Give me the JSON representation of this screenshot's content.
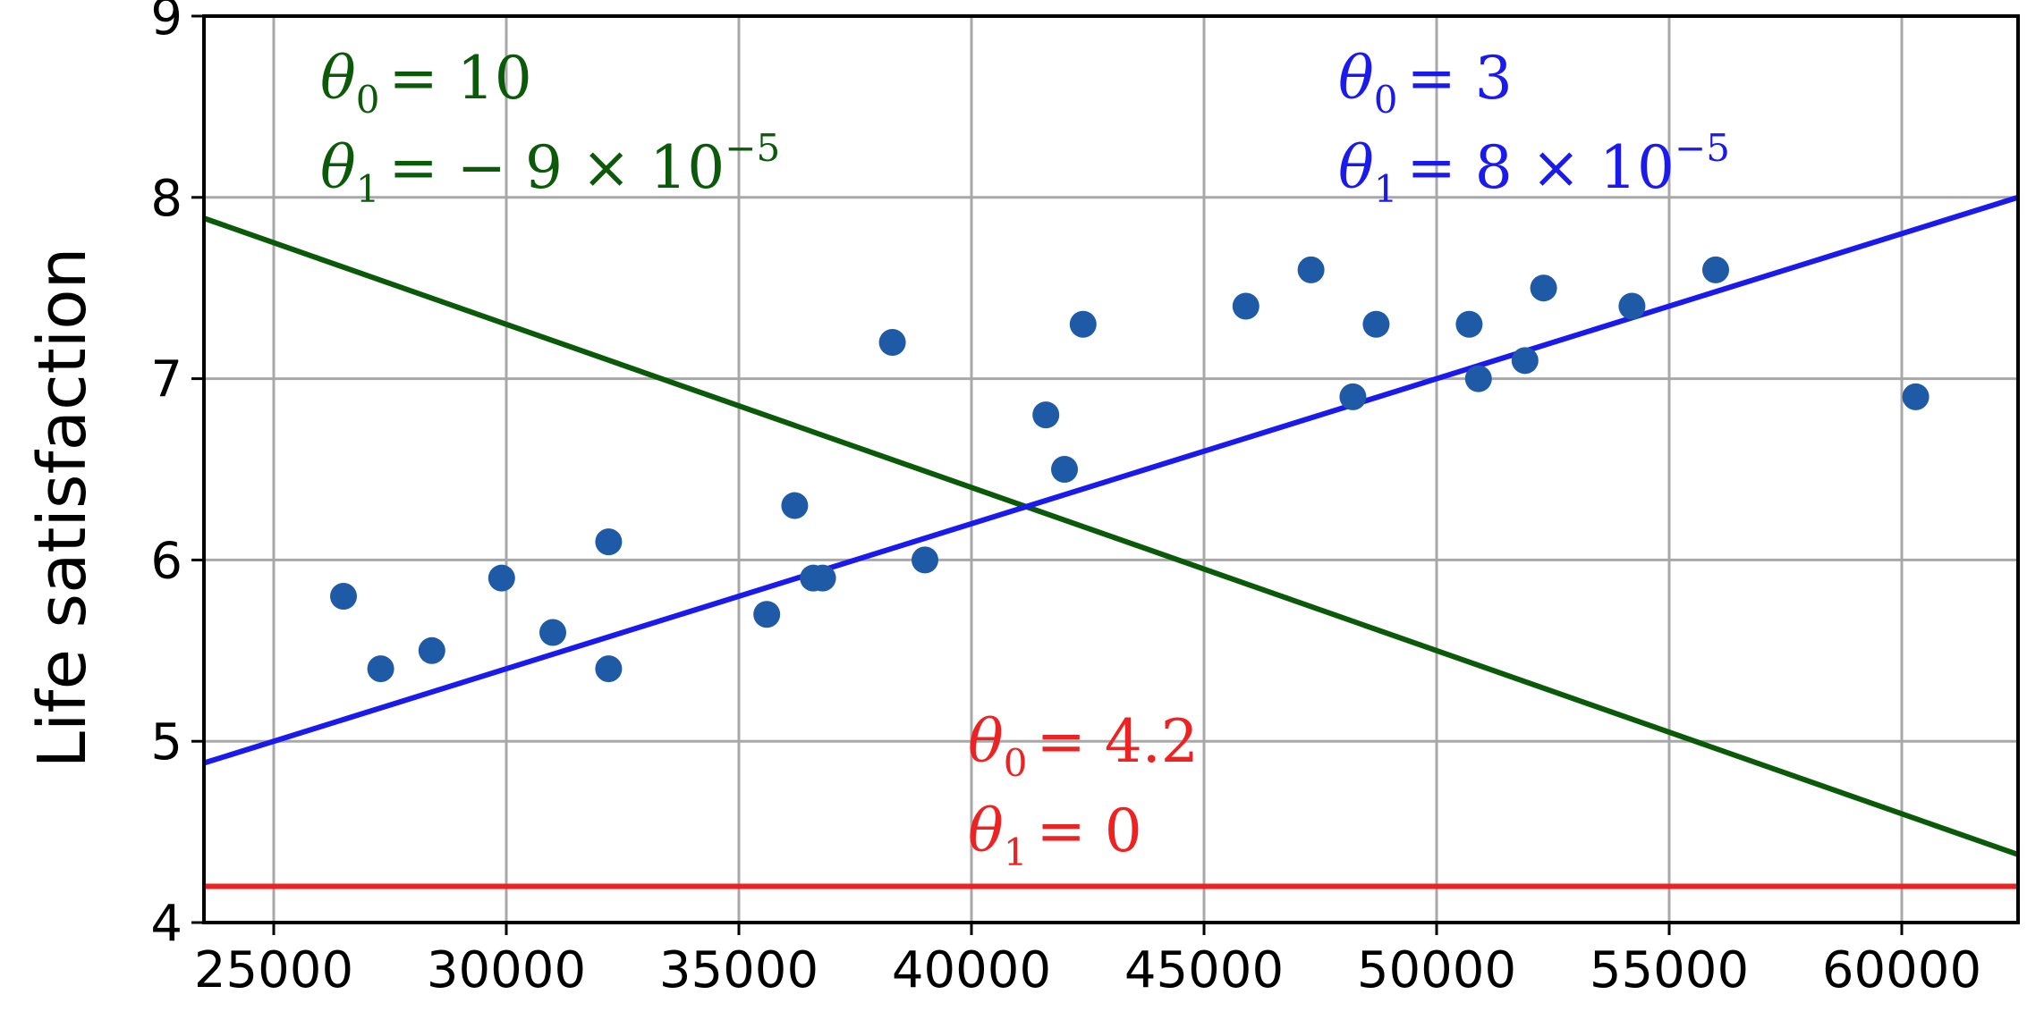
{
  "chart_data": {
    "type": "scatter",
    "xlabel": "",
    "ylabel": "Life satisfaction",
    "xlim": [
      23500,
      62500
    ],
    "ylim": [
      4,
      9
    ],
    "xticks": [
      25000,
      30000,
      35000,
      40000,
      45000,
      50000,
      55000,
      60000
    ],
    "yticks": [
      4,
      5,
      6,
      7,
      8,
      9
    ],
    "grid": true,
    "points": {
      "color": "#1f5aa6",
      "x": [
        26500,
        27300,
        28400,
        29900,
        31000,
        32200,
        32200,
        35600,
        36200,
        36600,
        36800,
        38300,
        39000,
        41600,
        42000,
        42400,
        45900,
        47300,
        48200,
        48700,
        50700,
        50900,
        51900,
        52300,
        54200,
        56000,
        60300
      ],
      "y": [
        5.8,
        5.4,
        5.5,
        5.9,
        5.6,
        5.4,
        6.1,
        5.7,
        6.3,
        5.9,
        5.9,
        7.2,
        6.0,
        6.8,
        6.5,
        7.3,
        7.4,
        7.6,
        6.9,
        7.3,
        7.3,
        7.0,
        7.1,
        7.5,
        7.4,
        7.6,
        6.9
      ]
    },
    "lines": [
      {
        "theta0": 10,
        "theta1": -9e-05,
        "color": "#0a5a0a",
        "label_theta0": "= 10",
        "label_theta1": "= − 9 × 10",
        "label_theta1_exp": "−5"
      },
      {
        "theta0": 3,
        "theta1": 8e-05,
        "color": "#1a1aee",
        "label_theta0": "= 3",
        "label_theta1": "= 8 × 10",
        "label_theta1_exp": "−5"
      },
      {
        "theta0": 4.2,
        "theta1": 0,
        "color": "#ee2222",
        "label_theta0": "= 4.2",
        "label_theta1": "= 0",
        "label_theta1_exp": ""
      }
    ]
  }
}
